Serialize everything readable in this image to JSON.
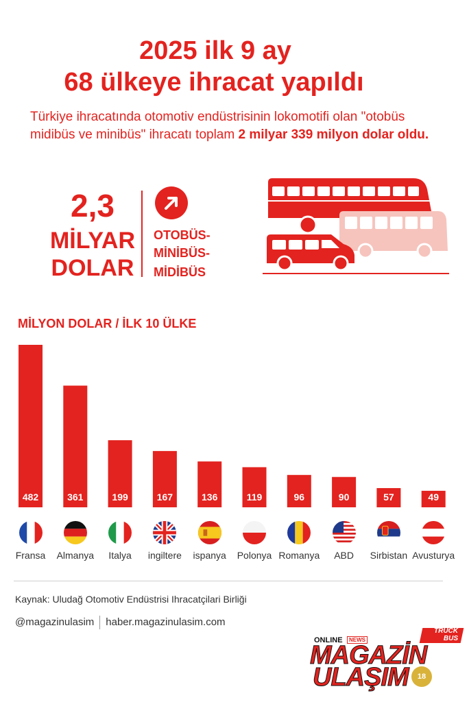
{
  "title": {
    "line1": "2025 ilk 9 ay",
    "line2": "68 ülkeye ihracat yapıldı"
  },
  "intro": {
    "part1": "Türkiye ihracatında otomotiv endüstrisinin lokomotifi olan \"otobüs midibüs ve minibüs\" ihracatı toplam ",
    "part2": "2 milyar 339 milyon dolar oldu."
  },
  "headline_figure": {
    "value": "2,3",
    "unit_line1": "MİLYAR",
    "unit_line2": "DOLAR"
  },
  "categories_label": {
    "line1": "OTOBÜS-",
    "line2": "MİNİBÜS-",
    "line3": "MİDİBÜS"
  },
  "icons": {
    "arrow": "arrow-up-right-icon",
    "buses": "bus-group-icon"
  },
  "colors": {
    "accent": "#e3231f",
    "bus_light": "#f6c4bd"
  },
  "chart_data": {
    "type": "bar",
    "title": "MİLYON DOLAR / İLK 10 ÜLKE",
    "categories": [
      "Fransa",
      "Almanya",
      "Italya",
      "ingiltere",
      "ispanya",
      "Polonya",
      "Romanya",
      "ABD",
      "Sirbistan",
      "Avusturya"
    ],
    "values": [
      482,
      361,
      199,
      167,
      136,
      119,
      96,
      90,
      57,
      49
    ],
    "value_labels": [
      "482",
      "361",
      "199",
      "167",
      "136",
      "119",
      "96",
      "90",
      "57",
      "49"
    ],
    "flags": [
      "france-flag-icon",
      "germany-flag-icon",
      "italy-flag-icon",
      "uk-flag-icon",
      "spain-flag-icon",
      "poland-flag-icon",
      "romania-flag-icon",
      "usa-flag-icon",
      "serbia-flag-icon",
      "austria-flag-icon"
    ],
    "bar_color": "#e3231f",
    "grid": false,
    "legend": "none"
  },
  "footer": {
    "source": "Kaynak: Uludağ Otomotiv Endüstrisi Ihracatçilari Birliği",
    "social_handle": "@magazinulasim",
    "website": "haber.magazinulasim.com"
  },
  "logo": {
    "online": "ONLINE",
    "news": "NEWS",
    "truck": "TRUCK",
    "bus": "BUS",
    "line1": "MAGAZİN",
    "line2": "ULAŞIM",
    "badge": "18"
  }
}
